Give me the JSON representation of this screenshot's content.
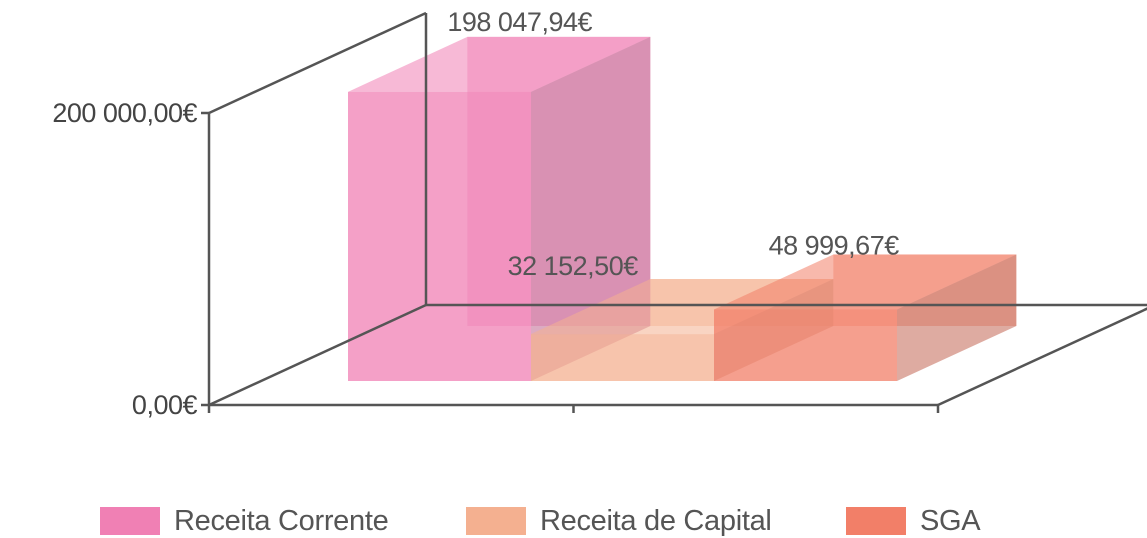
{
  "chart_data": {
    "type": "bar",
    "three_d": true,
    "categories": [
      ""
    ],
    "series": [
      {
        "name": "Receita Corrente",
        "values": [
          198047.94
        ],
        "label": "198 047,94€",
        "color": "#f080b4"
      },
      {
        "name": "Receita de Capital",
        "values": [
          32152.5
        ],
        "label": "32 152,50€",
        "color": "#f4b090"
      },
      {
        "name": "SGA",
        "values": [
          48999.67
        ],
        "label": "48 999,67€",
        "color": "#f27f68"
      }
    ],
    "y_ticks": [
      {
        "value": 0,
        "label": "0,00€"
      },
      {
        "value": 200000,
        "label": "200 000,00€"
      }
    ],
    "ylim": [
      0,
      200000
    ],
    "title": "",
    "xlabel": "",
    "ylabel": "",
    "grid": false,
    "legend_position": "bottom"
  }
}
